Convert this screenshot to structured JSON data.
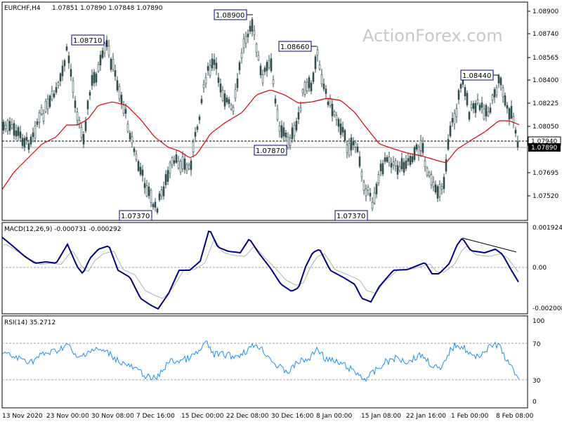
{
  "header": {
    "symbol": "EURCHF,H4",
    "ohlc": "1.07851 1.07890 1.07848 1.07890"
  },
  "watermark": "ActionForex.com",
  "price_axis": [
    "1.08900",
    "1.08740",
    "1.08565",
    "1.08400",
    "1.08225",
    "1.08050",
    "1.07890",
    "1.07695",
    "1.07520"
  ],
  "current_price": "1.07890",
  "level_price": "1.07940",
  "callouts": [
    "1.08900",
    "1.08710",
    "1.08660",
    "1.08440",
    "1.07870",
    "1.07370",
    "1.07370"
  ],
  "macd": {
    "label": "MACD(12,26,9) -0.000731 -0.000292",
    "axis": [
      "0.001924",
      "0.00",
      "-0.002008"
    ]
  },
  "rsi": {
    "label": "RSI(14) 35.2712",
    "axis": [
      "100",
      "70",
      "30",
      "0"
    ]
  },
  "time_axis": [
    "13 Nov 2020",
    "23 Nov 00:00",
    "30 Nov 08:00",
    "7 Dec 16:00",
    "15 Dec 00:00",
    "22 Dec 08:00",
    "30 Dec 16:00",
    "8 Jan 00:00",
    "15 Jan 08:00",
    "22 Jan 16:00",
    "1 Feb 00:00",
    "8 Feb 08:00"
  ],
  "colors": {
    "candles": "#2f4f4f",
    "ma": "#e00000",
    "macd": "#00008b",
    "signal": "#b0b0b0",
    "rsi": "#1e90ff",
    "callout_border": "#00008b",
    "price_tag_bg": "#000000"
  },
  "chart_data": [
    {
      "type": "candlestick",
      "title": "EURCHF,H4",
      "ylim": [
        1.0737,
        1.0895
      ],
      "moving_average": "red",
      "labels": [
        {
          "x": "24 Nov",
          "y": 1.0871,
          "text": "1.08710"
        },
        {
          "x": "10 Dec",
          "y": 1.0737,
          "text": "1.07370"
        },
        {
          "x": "22 Dec",
          "y": 1.089,
          "text": "1.08900"
        },
        {
          "x": "5 Jan",
          "y": 1.0787,
          "text": "1.07870"
        },
        {
          "x": "6 Jan",
          "y": 1.0866,
          "text": "1.08660"
        },
        {
          "x": "15 Jan",
          "y": 1.0737,
          "text": "1.07370"
        },
        {
          "x": "4 Feb",
          "y": 1.0844,
          "text": "1.08440"
        }
      ],
      "hlines": [
        1.0794,
        1.0789
      ]
    },
    {
      "type": "line",
      "title": "MACD(12,26,9) -0.000731 -0.000292",
      "series": [
        {
          "name": "MACD",
          "values": [
            0.0015,
            0.001,
            0.0003,
            0.0001,
            0.0011,
            0.0003,
            0.0011,
            -0.0004,
            -0.0018,
            0.0,
            0.0019,
            0.0009,
            0.0008,
            -0.0012,
            0.0008,
            -0.0016,
            0.0001,
            0.0003,
            0.0015,
            0.0008,
            0.0009,
            -0.0007
          ]
        },
        {
          "values": [
            0.0014,
            0.0011,
            0.0005,
            0.0002,
            0.0008,
            0.0005,
            0.0008,
            -0.0001,
            -0.0015,
            -0.0003,
            0.0014,
            0.0012,
            0.0008,
            -0.0008,
            0.0004,
            -0.0013,
            -0.0001,
            0.0002,
            0.0012,
            0.001,
            0.0008,
            -0.0003
          ]
        }
      ],
      "ylim": [
        -0.002008,
        0.001924
      ]
    },
    {
      "type": "line",
      "title": "RSI(14) 35.2712",
      "series": [
        {
          "values": [
            60,
            55,
            62,
            52,
            66,
            58,
            50,
            44,
            38,
            58,
            64,
            60,
            55,
            48,
            36,
            40,
            50,
            58,
            62,
            68,
            58,
            35
          ]
        }
      ],
      "ylim": [
        0,
        100
      ],
      "hlines": [
        70,
        30
      ]
    }
  ]
}
